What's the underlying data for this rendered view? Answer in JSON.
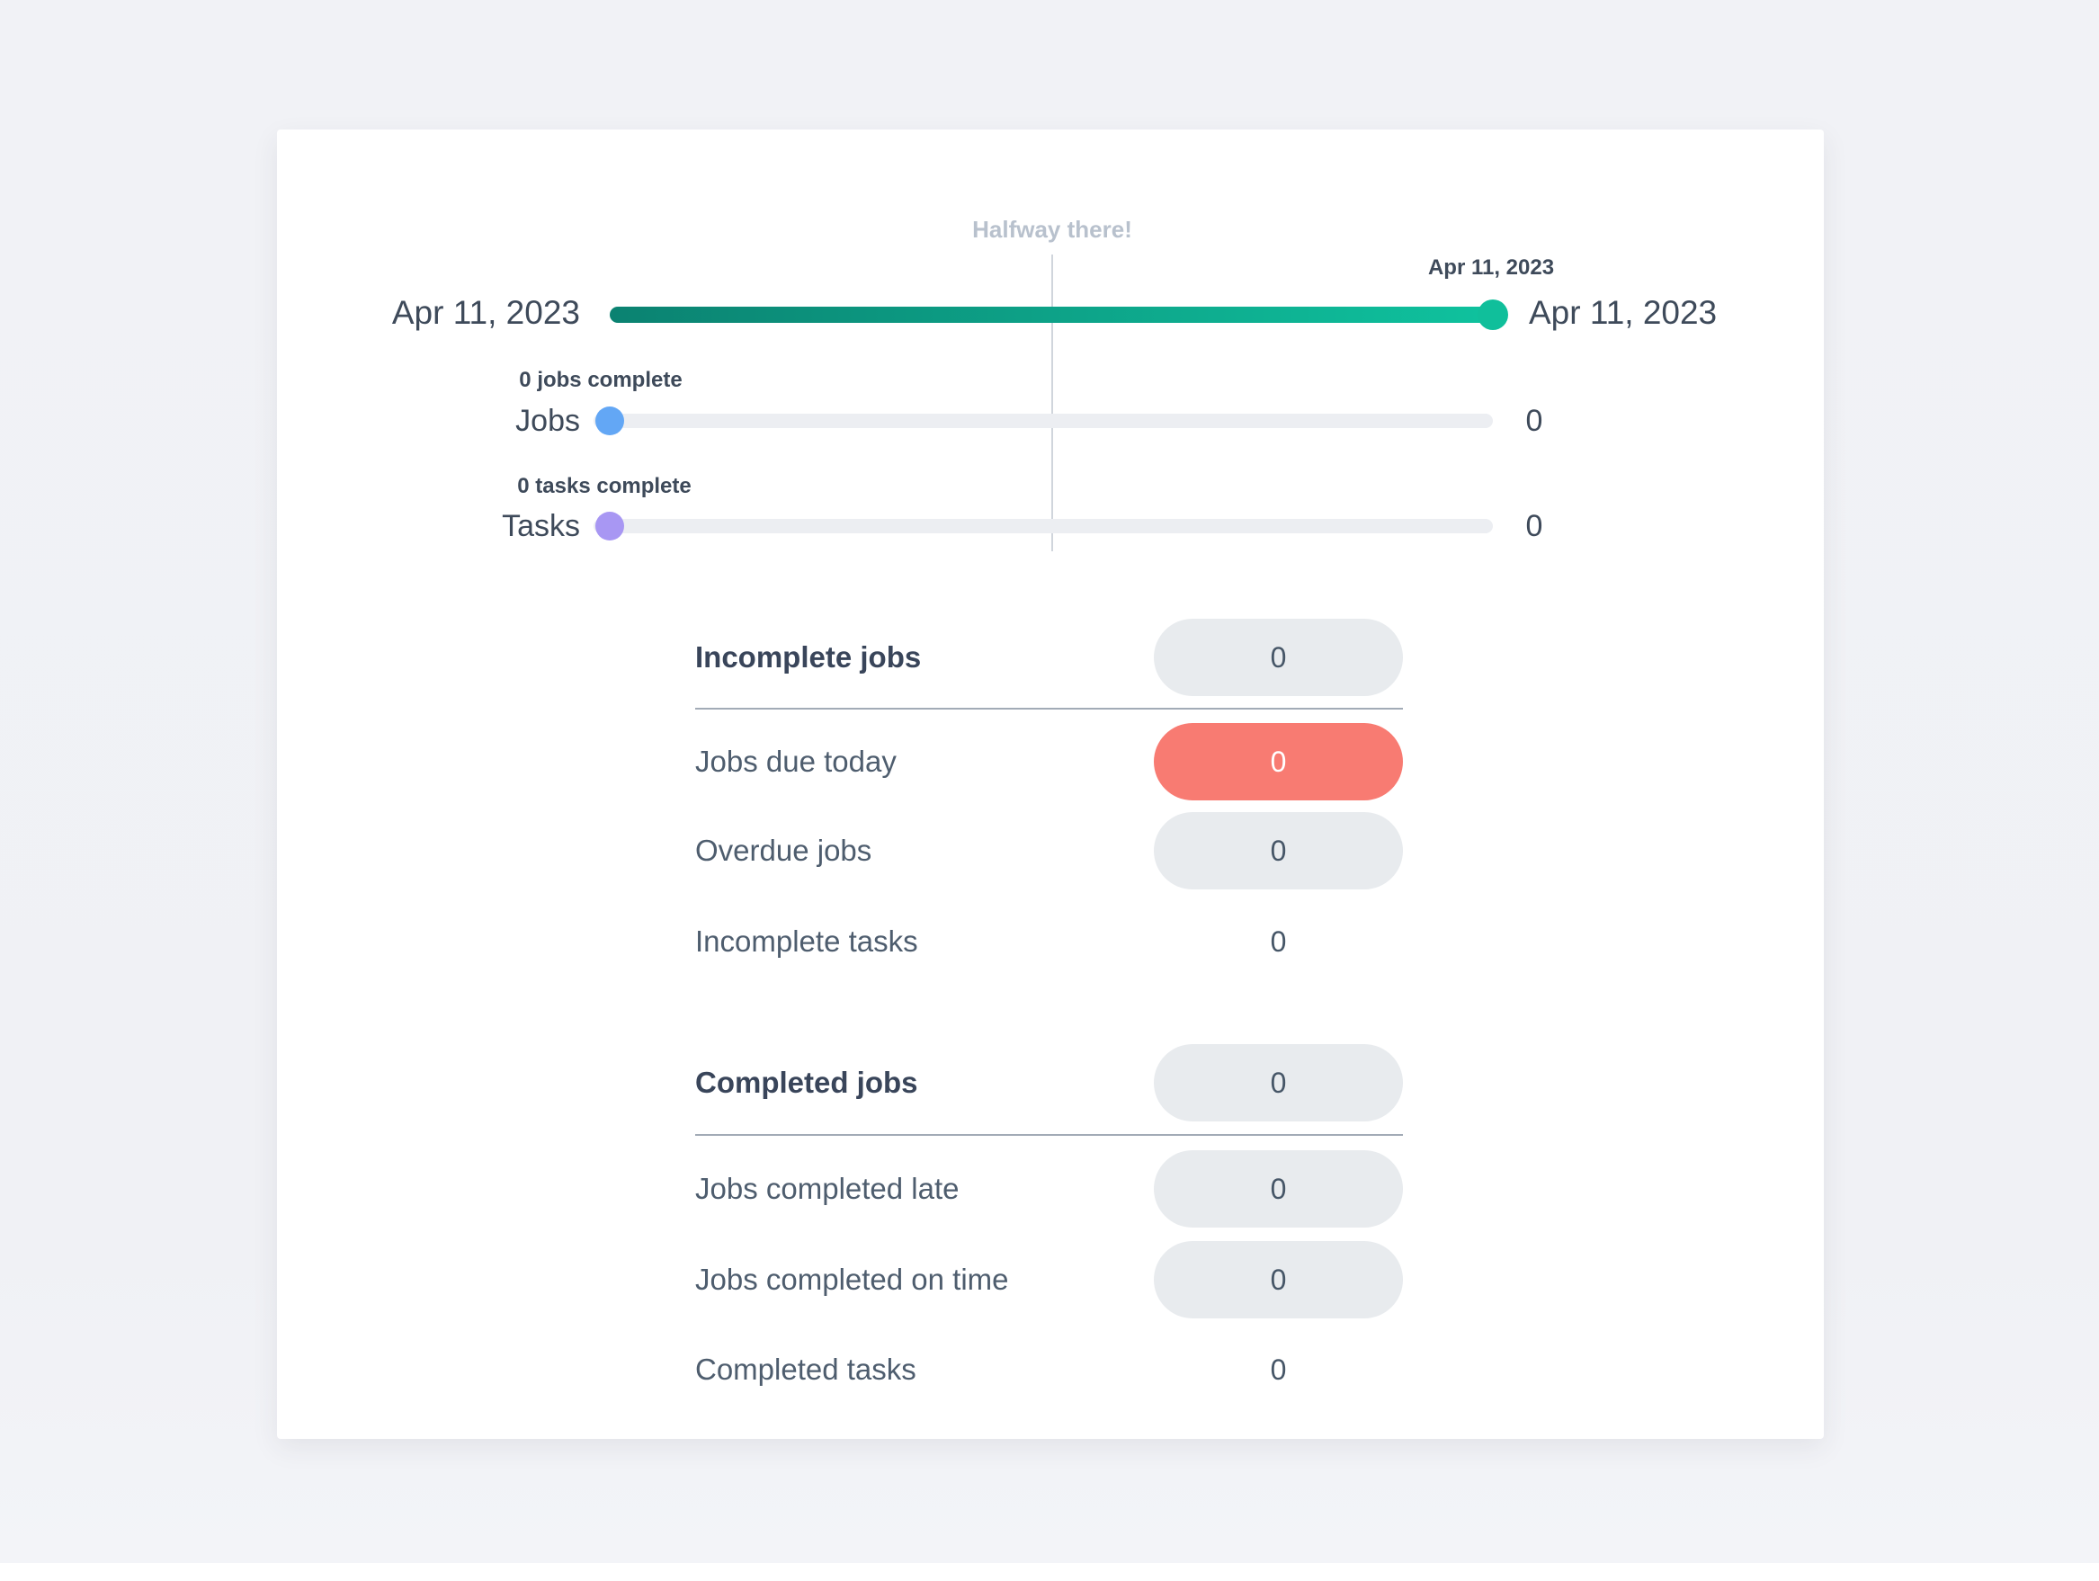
{
  "page": {
    "halfway_label": "Halfway there!"
  },
  "timeline": {
    "start_date": "Apr 11, 2023",
    "end_date": "Apr 11, 2023",
    "end_date_marker": "Apr 11, 2023"
  },
  "progress": {
    "jobs": {
      "name": "Jobs",
      "status": "0 jobs complete",
      "value": "0"
    },
    "tasks": {
      "name": "Tasks",
      "status": "0 tasks complete",
      "value": "0"
    }
  },
  "stats": {
    "incomplete": {
      "header": {
        "label": "Incomplete jobs",
        "value": "0"
      },
      "rows": [
        {
          "label": "Jobs due today",
          "value": "0"
        },
        {
          "label": "Overdue jobs",
          "value": "0"
        },
        {
          "label": "Incomplete tasks",
          "value": "0"
        }
      ]
    },
    "completed": {
      "header": {
        "label": "Completed jobs",
        "value": "0"
      },
      "rows": [
        {
          "label": "Jobs completed late",
          "value": "0"
        },
        {
          "label": "Jobs completed on time",
          "value": "0"
        },
        {
          "label": "Completed tasks",
          "value": "0"
        }
      ]
    }
  },
  "colors": {
    "timeline_gradient_start": "#0b8271",
    "timeline_gradient_end": "#0fc29e",
    "timeline_dot": "#10bf9b",
    "jobs_dot": "#63a7f5",
    "tasks_dot": "#a897f3",
    "badge_gray": "#e8ebee",
    "badge_red": "#f87b72",
    "text_dark": "#3e4a5a",
    "muted_text": "#b8c1cd",
    "background": "#f1f2f6"
  }
}
